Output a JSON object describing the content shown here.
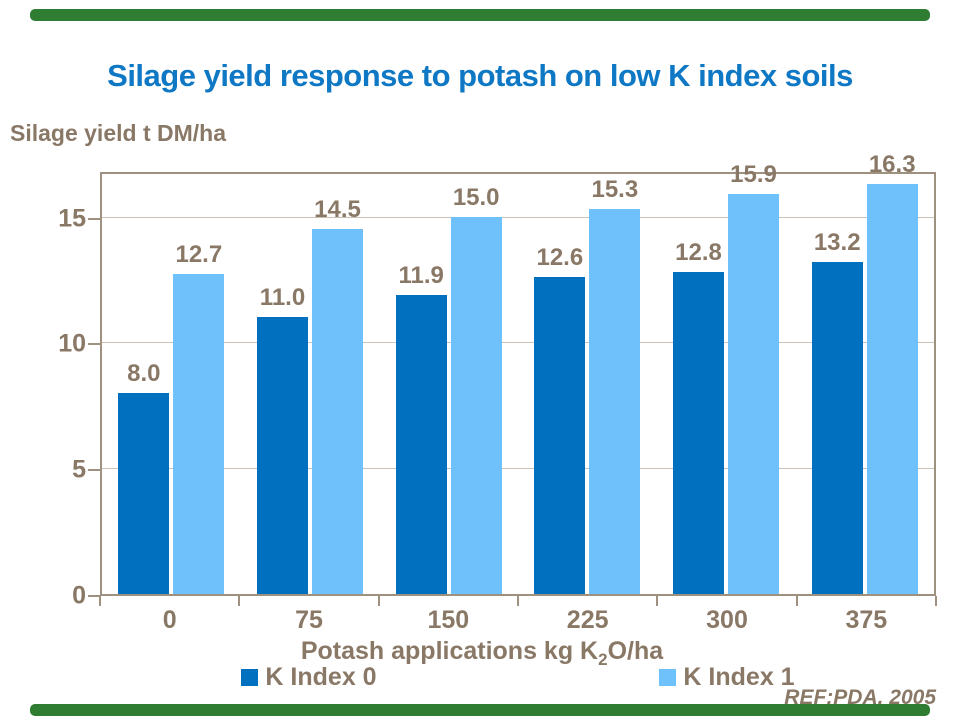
{
  "slide": {
    "title_color": "#0e78c4",
    "accent_bar_color": "#2e7d32",
    "text_color": "#8a7866",
    "ref_text": "REF:PDA, 2005"
  },
  "chart_data": {
    "type": "bar",
    "title": "Silage yield response to potash on low K index soils",
    "ylabel": "Silage yield t DM/ha",
    "xlabel": "Potash applications kg K2O/ha",
    "xlabel_parts": {
      "prefix": "Potash applications kg K",
      "sub": "2",
      "suffix": "O/ha"
    },
    "categories": [
      "0",
      "75",
      "150",
      "225",
      "300",
      "375"
    ],
    "series": [
      {
        "name": "K Index 0",
        "color": "#0070bf",
        "values": [
          8.0,
          11.0,
          11.9,
          12.6,
          12.8,
          13.2
        ]
      },
      {
        "name": "K Index 1",
        "color": "#6fc1fb",
        "values": [
          12.7,
          14.5,
          15.0,
          15.3,
          15.9,
          16.3
        ]
      }
    ],
    "yticks": [
      0,
      5,
      10,
      15
    ],
    "ylim": [
      0,
      16.85
    ],
    "grid": true,
    "gridline_color": "#cac2b6",
    "axis_color": "#9e9180",
    "legend_position": "bottom"
  }
}
